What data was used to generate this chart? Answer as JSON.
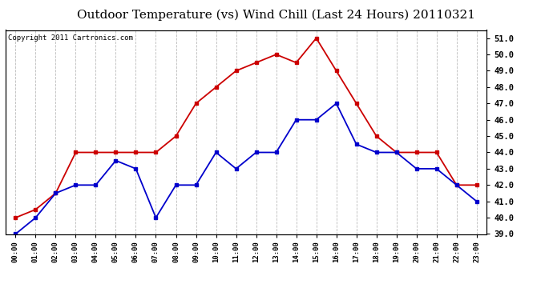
{
  "title": "Outdoor Temperature (vs) Wind Chill (Last 24 Hours) 20110321",
  "copyright_text": "Copyright 2011 Cartronics.com",
  "hours": [
    "00:00",
    "01:00",
    "02:00",
    "03:00",
    "04:00",
    "05:00",
    "06:00",
    "07:00",
    "08:00",
    "09:00",
    "10:00",
    "11:00",
    "12:00",
    "13:00",
    "14:00",
    "15:00",
    "16:00",
    "17:00",
    "18:00",
    "19:00",
    "20:00",
    "21:00",
    "22:00",
    "23:00"
  ],
  "outdoor_temp": [
    40.0,
    40.5,
    41.5,
    44.0,
    44.0,
    44.0,
    44.0,
    44.0,
    45.0,
    47.0,
    48.0,
    49.0,
    49.5,
    50.0,
    49.5,
    51.0,
    49.0,
    47.0,
    45.0,
    44.0,
    44.0,
    44.0,
    42.0,
    42.0
  ],
  "wind_chill": [
    39.0,
    40.0,
    41.5,
    42.0,
    42.0,
    43.5,
    43.0,
    40.0,
    42.0,
    42.0,
    44.0,
    43.0,
    44.0,
    44.0,
    46.0,
    46.0,
    47.0,
    44.5,
    44.0,
    44.0,
    43.0,
    43.0,
    42.0,
    41.0
  ],
  "temp_color": "#cc0000",
  "wind_chill_color": "#0000cc",
  "ylim_min": 39.0,
  "ylim_max": 51.5,
  "background_color": "#ffffff",
  "plot_bg_color": "#ffffff",
  "grid_color": "#bbbbbb",
  "title_fontsize": 11,
  "copyright_fontsize": 6.5,
  "marker": "s",
  "marker_size": 3,
  "line_width": 1.3
}
